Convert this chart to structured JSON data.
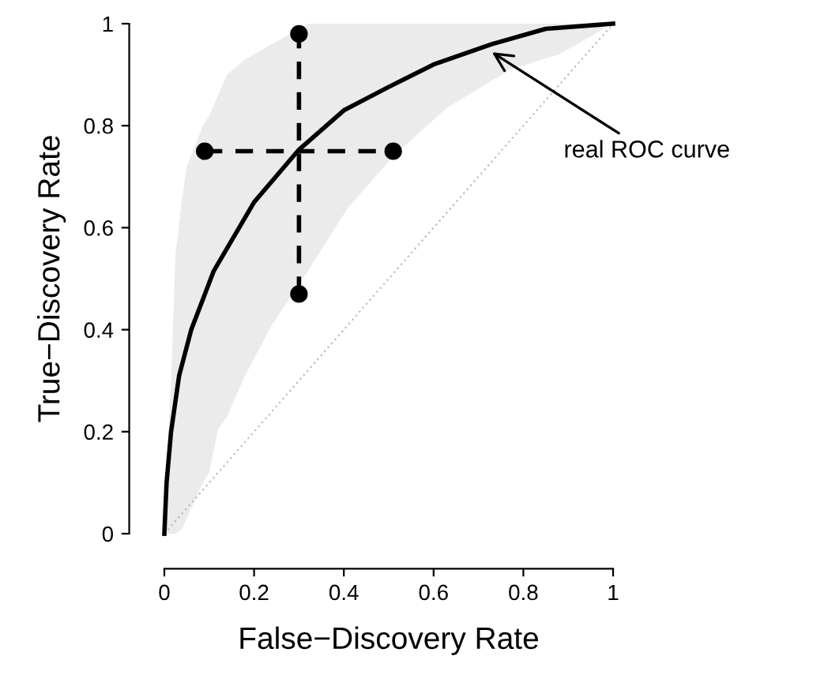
{
  "chart_data": {
    "type": "line",
    "xlabel": "False−Discovery Rate",
    "ylabel": "True−Discovery Rate",
    "xlim": [
      0,
      1
    ],
    "ylim": [
      0,
      1
    ],
    "xticks": [
      0,
      0.2,
      0.4,
      0.6,
      0.8,
      1
    ],
    "yticks": [
      0,
      0.2,
      0.4,
      0.6,
      0.8,
      1
    ],
    "grid": false,
    "legend": false,
    "series": [
      {
        "type": "area",
        "color": "#ebebeb",
        "values": [
          null,
          null,
          null,
          null,
          null,
          null,
          null,
          null,
          null,
          null,
          null,
          null,
          null,
          null,
          null,
          null,
          null,
          null
        ],
        "x": [
          0,
          0.015,
          0.025,
          0.04,
          0.05,
          0.086,
          0.1,
          0.12,
          0.14,
          0.18,
          0.24,
          0.32,
          0.41,
          0.51,
          0.63,
          0.77,
          0.88,
          1
        ],
        "lower": [
          0,
          0,
          0,
          0.01,
          0.03,
          0.1,
          0.12,
          0.205,
          0.23,
          0.31,
          0.41,
          0.515,
          0.64,
          0.74,
          0.835,
          0.91,
          0.94,
          1
        ],
        "upper": [
          0.02,
          0.3,
          0.55,
          0.66,
          0.72,
          0.8,
          0.82,
          0.86,
          0.9,
          0.93,
          0.96,
          1,
          1,
          1,
          1,
          1,
          1,
          1
        ]
      },
      {
        "type": "line",
        "color": "#bbbbbb",
        "line_style": "dotted",
        "x": [
          0,
          1
        ],
        "values": [
          0,
          1
        ]
      },
      {
        "type": "line",
        "color": "#000000",
        "line_style": "solid",
        "x": [
          0,
          0.005,
          0.015,
          0.033,
          0.06,
          0.11,
          0.2,
          0.3,
          0.4,
          0.5,
          0.6,
          0.73,
          0.85,
          1
        ],
        "values": [
          0,
          0.1,
          0.2,
          0.31,
          0.4,
          0.515,
          0.65,
          0.753,
          0.83,
          0.876,
          0.92,
          0.96,
          0.99,
          1
        ]
      },
      {
        "color": "#000000",
        "marker": "circle",
        "line_style": "dashed",
        "x": [
          0.09,
          0.51
        ],
        "values": [
          0.75,
          0.75
        ]
      },
      {
        "color": "#000000",
        "marker": "circle",
        "line_style": "dashed",
        "x": [
          0.3,
          0.3
        ],
        "values": [
          0.47,
          0.98
        ]
      }
    ],
    "annotations": [
      {
        "text": "real ROC curve",
        "x": 0.73,
        "y": 0.944
      }
    ]
  }
}
